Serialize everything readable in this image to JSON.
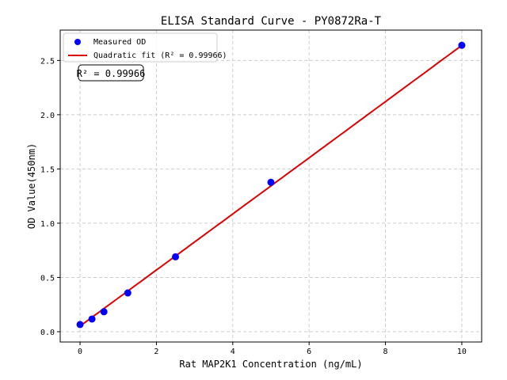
{
  "chart_data": {
    "type": "scatter",
    "title": "ELISA Standard Curve - PY0872Ra-T",
    "xlabel": "Rat MAP2K1 Concentration (ng/mL)",
    "ylabel": "OD Value(450nm)",
    "xlim": [
      -0.52,
      10.52
    ],
    "ylim": [
      -0.095,
      2.78
    ],
    "xticks": [
      0,
      2,
      4,
      6,
      8,
      10
    ],
    "yticks": [
      0.0,
      0.5,
      1.0,
      1.5,
      2.0,
      2.5
    ],
    "xtick_labels": [
      "0",
      "2",
      "4",
      "6",
      "8",
      "10"
    ],
    "ytick_labels": [
      "0.0",
      "0.5",
      "1.0",
      "1.5",
      "2.0",
      "2.5"
    ],
    "grid": true,
    "legend_position": "top-left",
    "series": [
      {
        "name": "Measured OD",
        "kind": "points",
        "color": "#0000ff",
        "x": [
          0,
          0.3125,
          0.625,
          1.25,
          2.5,
          5,
          10
        ],
        "y": [
          0.066,
          0.117,
          0.184,
          0.357,
          0.69,
          1.377,
          2.64
        ]
      },
      {
        "name": "Quadratic fit (R² = 0.99966)",
        "kind": "line",
        "color": "#dd0000",
        "coefficients": [
          0.052,
          0.258,
          7e-05
        ]
      }
    ],
    "annotation": "R² = 0.99966"
  }
}
